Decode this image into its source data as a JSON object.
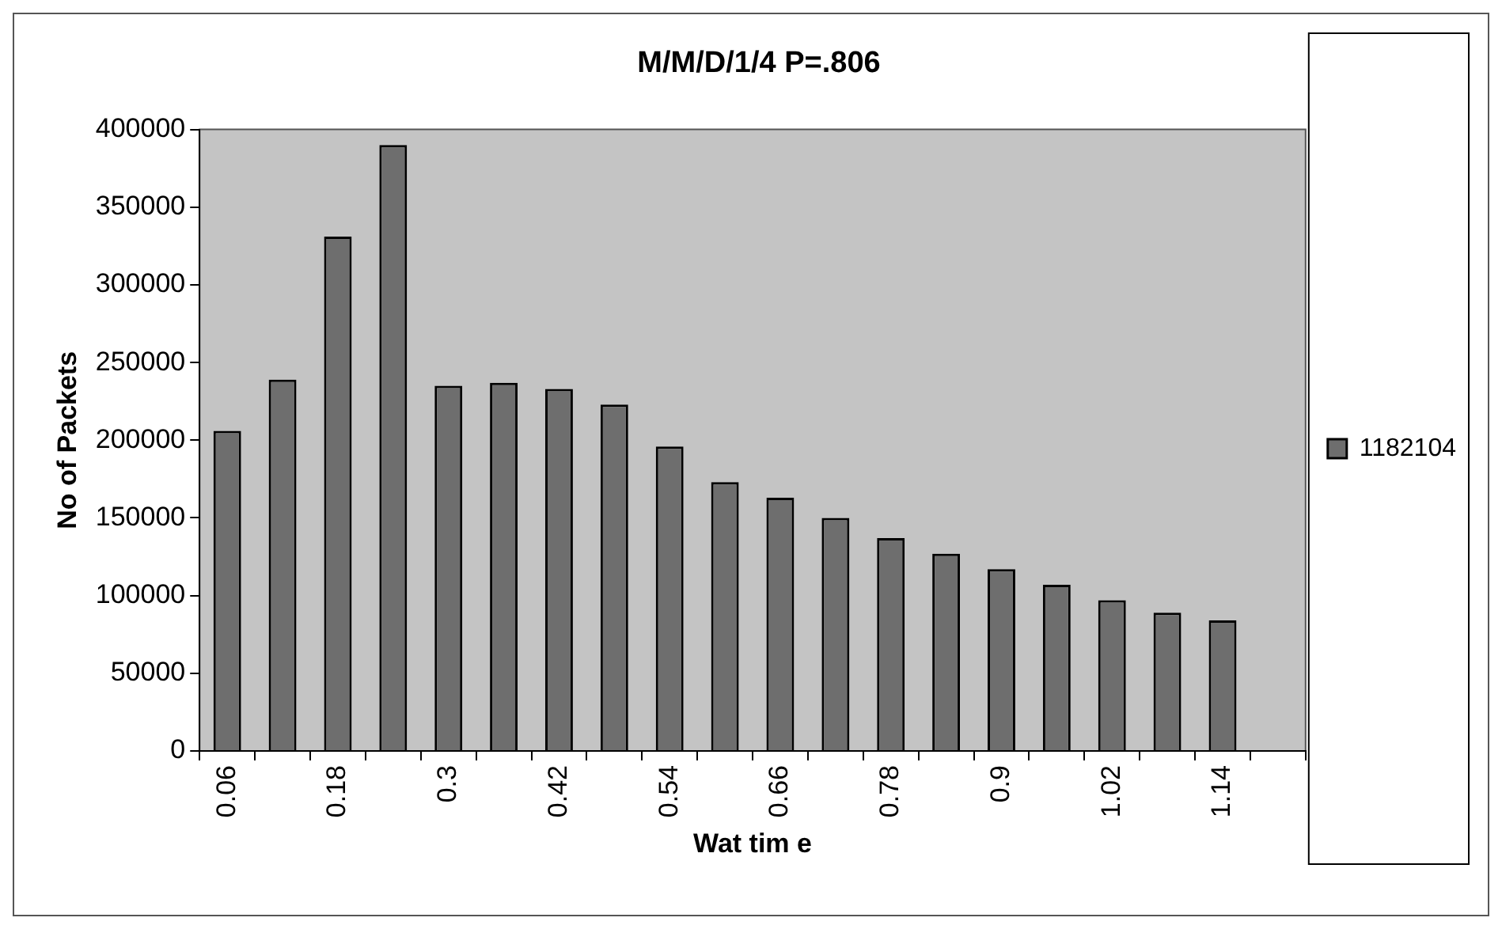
{
  "chart_data": {
    "type": "bar",
    "title": "M/M/D/1/4 P=.806",
    "xlabel": "Wat tim e",
    "ylabel": "No of Packets",
    "categories": [
      "0.06",
      null,
      "0.18",
      null,
      "0.3",
      null,
      "0.42",
      null,
      "0.54",
      null,
      "0.66",
      null,
      "0.78",
      null,
      "0.9",
      null,
      "1.02",
      null,
      "1.14",
      null
    ],
    "series": [
      {
        "name": "1182104",
        "color": "#6e6e6e",
        "values": [
          206000,
          239000,
          331000,
          390000,
          235000,
          237000,
          233000,
          223000,
          196000,
          173000,
          163000,
          150000,
          137000,
          127000,
          117000,
          107000,
          97000,
          89000,
          84000,
          null
        ]
      }
    ],
    "ylim": [
      0,
      400000
    ],
    "yticks": [
      0,
      50000,
      100000,
      150000,
      200000,
      250000,
      300000,
      350000,
      400000
    ],
    "legend": "right"
  }
}
